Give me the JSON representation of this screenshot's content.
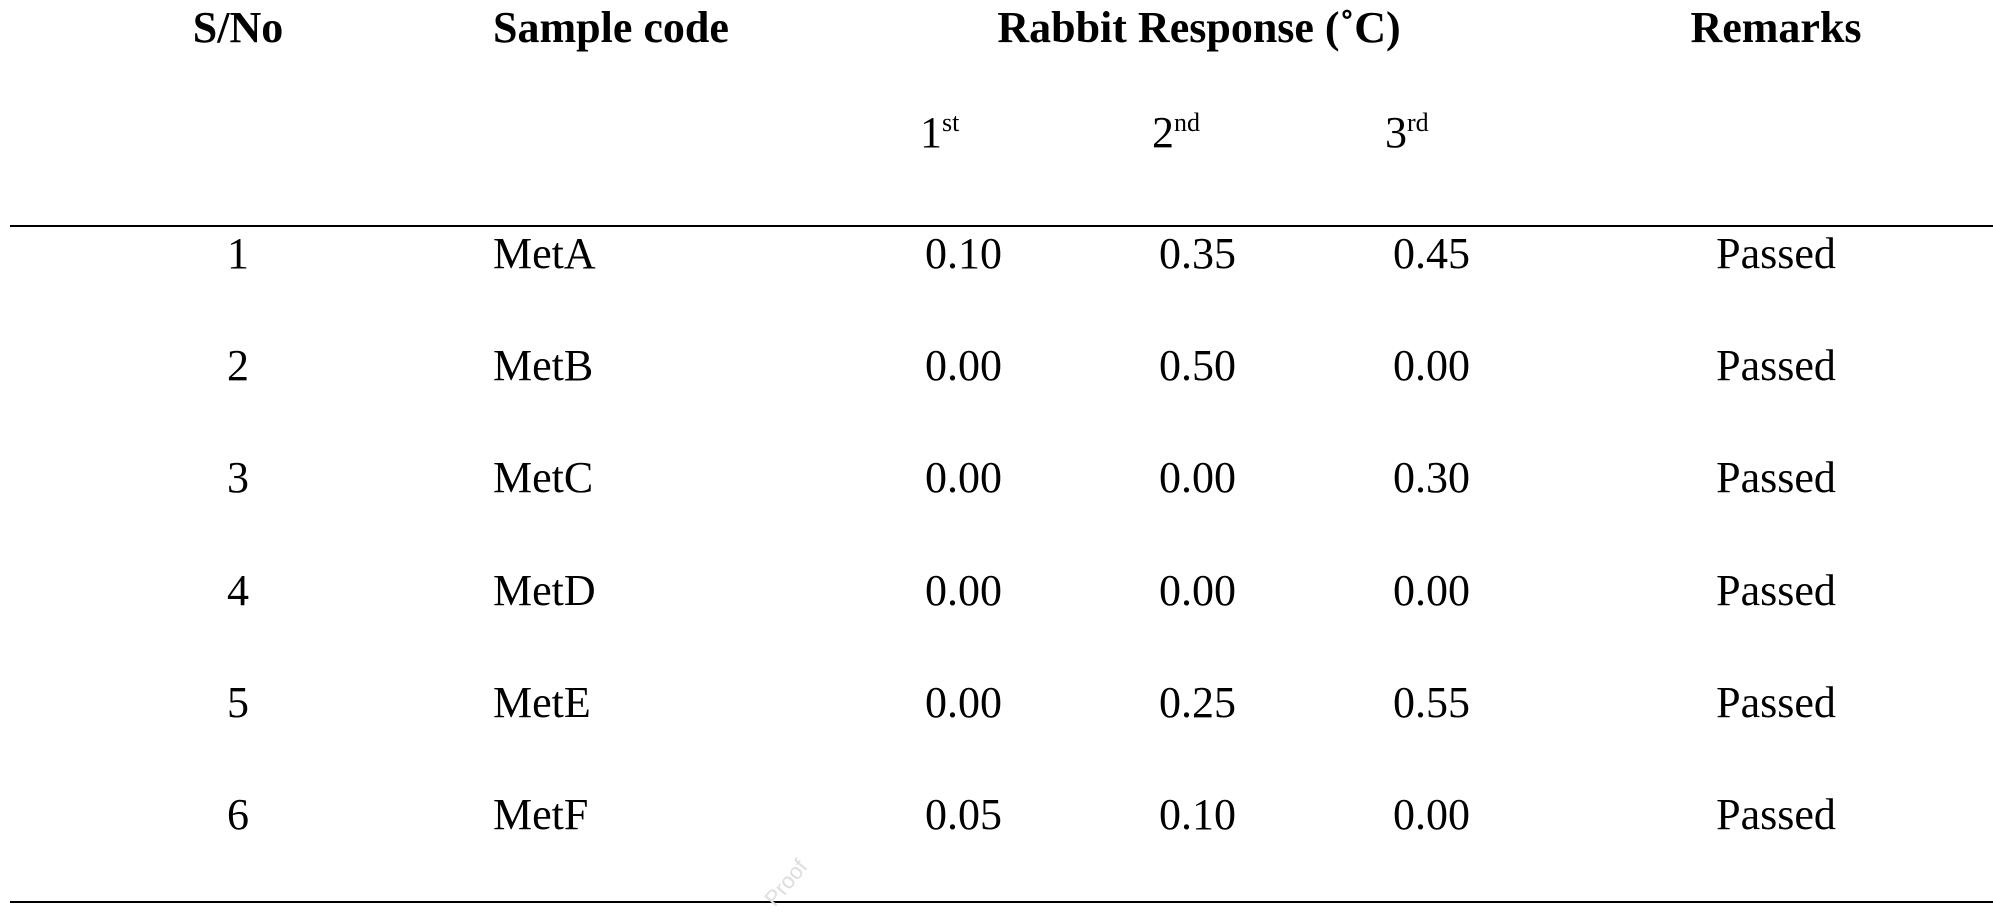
{
  "table": {
    "header": [
      "S/No",
      "Sample code",
      "Rabbit Response (˚C)",
      "Remarks"
    ],
    "subheader": [
      {
        "base": "1",
        "sup": "st"
      },
      {
        "base": "2",
        "sup": "nd"
      },
      {
        "base": "3",
        "sup": "rd"
      }
    ],
    "rows": [
      [
        "1",
        "MetA",
        "0.10",
        "0.35",
        "0.45",
        "Passed"
      ],
      [
        "2",
        "MetB",
        "0.00",
        "0.50",
        "0.00",
        "Passed"
      ],
      [
        "3",
        "MetC",
        "0.00",
        "0.00",
        "0.30",
        "Passed"
      ],
      [
        "4",
        "MetD",
        "0.00",
        "0.00",
        "0.00",
        "Passed"
      ],
      [
        "5",
        "MetE",
        "0.00",
        "0.25",
        "0.55",
        "Passed"
      ],
      [
        "6",
        "MetF",
        "0.05",
        "0.10",
        "0.00",
        "Passed"
      ]
    ]
  },
  "watermark": "Proof"
}
